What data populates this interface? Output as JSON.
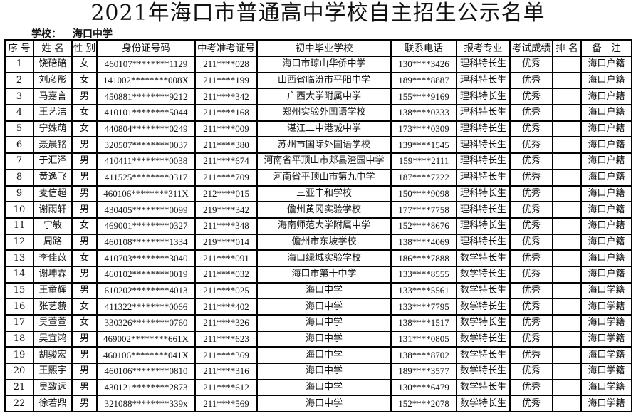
{
  "title": "2021年海口市普通高中学校自主招生公示名单",
  "school_label": "学校：",
  "school_value": "海口中学",
  "headers": [
    "序 号",
    "姓 名",
    "性 别",
    "身份证号码",
    "中考准考证号",
    "初中毕业学校",
    "联系电话",
    "报考专业",
    "考试成绩",
    "排 名",
    "备　注"
  ],
  "rows": [
    [
      "1",
      "饶碚碚",
      "女",
      "460107********1129",
      "211****028",
      "海口市琼山华侨中学",
      "130****3426",
      "理科特长生",
      "优秀",
      "",
      "海口户籍"
    ],
    [
      "2",
      "刘彦彤",
      "女",
      "141002********008X",
      "211****199",
      "山西省临汾市平阳中学",
      "189****8887",
      "理科特长生",
      "优秀",
      "",
      "海口户籍"
    ],
    [
      "3",
      "马嘉言",
      "男",
      "450881********9212",
      "211****342",
      "广西大学附属中学",
      "155****9169",
      "理科特长生",
      "优秀",
      "",
      "海口户籍"
    ],
    [
      "4",
      "王艺洁",
      "女",
      "410101********5044",
      "211****168",
      "郑州实验外国语学校",
      "138****0333",
      "理科特长生",
      "优秀",
      "",
      "海口户籍"
    ],
    [
      "5",
      "宁姝萌",
      "女",
      "440804********0249",
      "211****009",
      "湛江二中港城中学",
      "173****0309",
      "理科特长生",
      "优秀",
      "",
      "海口户籍"
    ],
    [
      "6",
      "聂晨铭",
      "男",
      "320507********0037",
      "211****380",
      "苏州市国际外国语学校",
      "139****1545",
      "理科特长生",
      "优秀",
      "",
      "海口户籍"
    ],
    [
      "7",
      "于汇泽",
      "男",
      "410411********0038",
      "211****674",
      "河南省平顶山市郏县渣园中学",
      "159****2111",
      "理科特长生",
      "优秀",
      "",
      "海口户籍"
    ],
    [
      "8",
      "黄逸飞",
      "男",
      "411525********0317",
      "211****709",
      "河南省平顶山市第九中学",
      "187****7222",
      "理科特长生",
      "优秀",
      "",
      "海口户籍"
    ],
    [
      "9",
      "麦信超",
      "男",
      "460106********311X",
      "212****015",
      "三亚丰和学校",
      "150****9098",
      "理科特长生",
      "优秀",
      "",
      "海口户籍"
    ],
    [
      "10",
      "谢雨轩",
      "男",
      "430405********0099",
      "219****342",
      "儋州黄冈实验学校",
      "177****7758",
      "理科特长生",
      "优秀",
      "",
      "海口户籍"
    ],
    [
      "11",
      "宁敏",
      "女",
      "469001********0327",
      "211****348",
      "海南师范大学附属中学",
      "152****8676",
      "理科特长生",
      "优秀",
      "",
      "海口户籍"
    ],
    [
      "12",
      "周路",
      "男",
      "460108********1334",
      "219****014",
      "儋州市东坡学校",
      "138****4069",
      "理科特长生",
      "优秀",
      "",
      "海口户籍"
    ],
    [
      "13",
      "李佳苡",
      "女",
      "410703********3040",
      "211****091",
      "海口绿城实验学校",
      "186****7888",
      "数学特长生",
      "优秀",
      "",
      "海口户籍"
    ],
    [
      "14",
      "谢坤霖",
      "男",
      "460102********0019",
      "211****032",
      "海口市第十中学",
      "133****8555",
      "数学特长生",
      "优秀",
      "",
      "海口户籍"
    ],
    [
      "15",
      "王童辉",
      "男",
      "610202********4013",
      "211****025",
      "海口中学",
      "133****5561",
      "数学特长生",
      "优秀",
      "",
      "海口学籍"
    ],
    [
      "16",
      "张艺藐",
      "女",
      "411322********0066",
      "211****402",
      "海口中学",
      "133****7795",
      "数学特长生",
      "优秀",
      "",
      "海口学籍"
    ],
    [
      "17",
      "吴萱萱",
      "女",
      "330326********0760",
      "211****326",
      "海口中学",
      "138****1517",
      "数学特长生",
      "优秀",
      "",
      "海口学籍"
    ],
    [
      "18",
      "吴宜鸿",
      "男",
      "469002********661X",
      "211****623",
      "海口中学",
      "131****0805",
      "数学特长生",
      "优秀",
      "",
      "海口学籍"
    ],
    [
      "19",
      "胡骏宏",
      "男",
      "460106********041X",
      "211****369",
      "海口中学",
      "138****8702",
      "数学特长生",
      "优秀",
      "",
      "海口学籍"
    ],
    [
      "20",
      "王熙宇",
      "男",
      "460106********0810",
      "211****316",
      "海口中学",
      "189****3577",
      "数学特长生",
      "优秀",
      "",
      "海口学籍"
    ],
    [
      "21",
      "吴致远",
      "男",
      "430121********2873",
      "211****612",
      "海口中学",
      "130****6479",
      "数学特长生",
      "优秀",
      "",
      "海口学籍"
    ],
    [
      "22",
      "徐若鼎",
      "男",
      "321088********339x",
      "211****569",
      "海口中学",
      "152****2078",
      "数学特长生",
      "优秀",
      "",
      "海口学籍"
    ]
  ]
}
